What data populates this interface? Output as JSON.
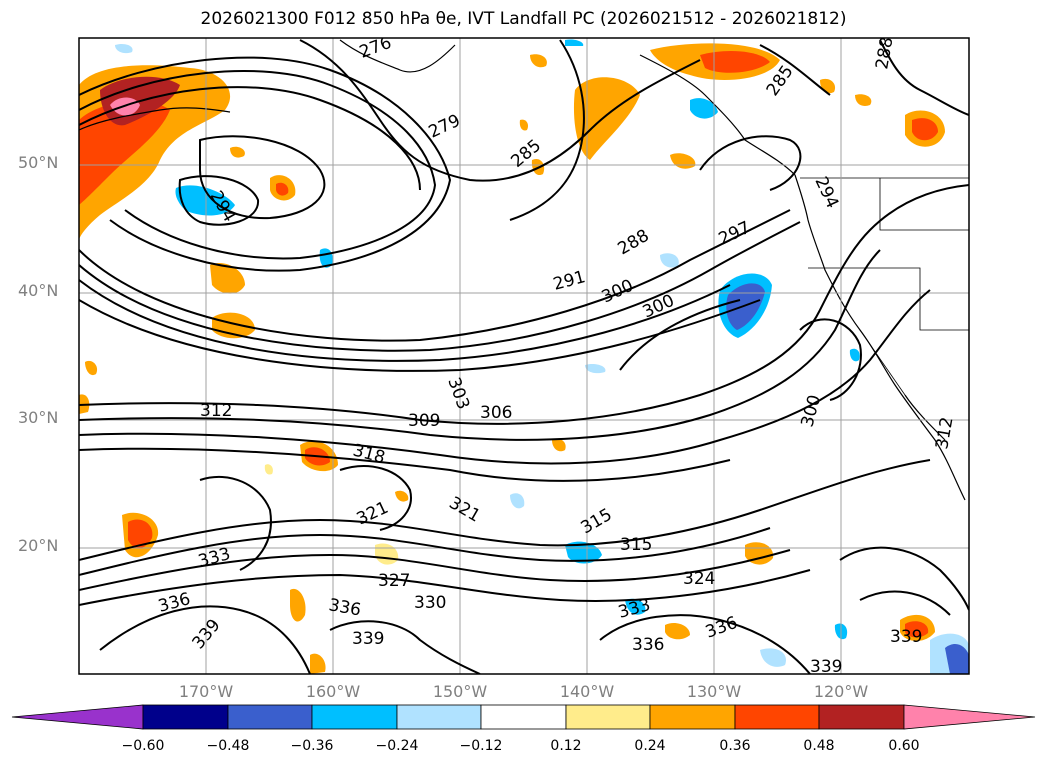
{
  "title": "2026021300 F012 850 hPa θe, IVT Landfall PC (2026021512 - 2026021812)",
  "map": {
    "lat_labels": [
      "50°N",
      "40°N",
      "30°N",
      "20°N"
    ],
    "lon_labels": [
      "170°W",
      "160°W",
      "150°W",
      "140°W",
      "130°W",
      "120°W"
    ],
    "contour_labels": [
      "276",
      "279",
      "285",
      "285",
      "288",
      "294",
      "294",
      "288",
      "291",
      "297",
      "300",
      "300",
      "300",
      "303",
      "306",
      "309",
      "312",
      "312",
      "315",
      "315",
      "318",
      "321",
      "321",
      "324",
      "327",
      "330",
      "333",
      "333",
      "336",
      "336",
      "336",
      "336",
      "339",
      "339",
      "339",
      "339"
    ]
  },
  "colorbar": {
    "tick_labels": [
      "−0.60",
      "−0.48",
      "−0.36",
      "−0.24",
      "−0.12",
      "0.12",
      "0.24",
      "0.36",
      "0.48",
      "0.60"
    ],
    "colors": [
      "#9932cc",
      "#00008b",
      "#3a5fcd",
      "#00bfff",
      "#b0e2ff",
      "#ffffff",
      "#ffec8b",
      "#ffa500",
      "#ff4500",
      "#b22222",
      "#ff82ab"
    ]
  }
}
